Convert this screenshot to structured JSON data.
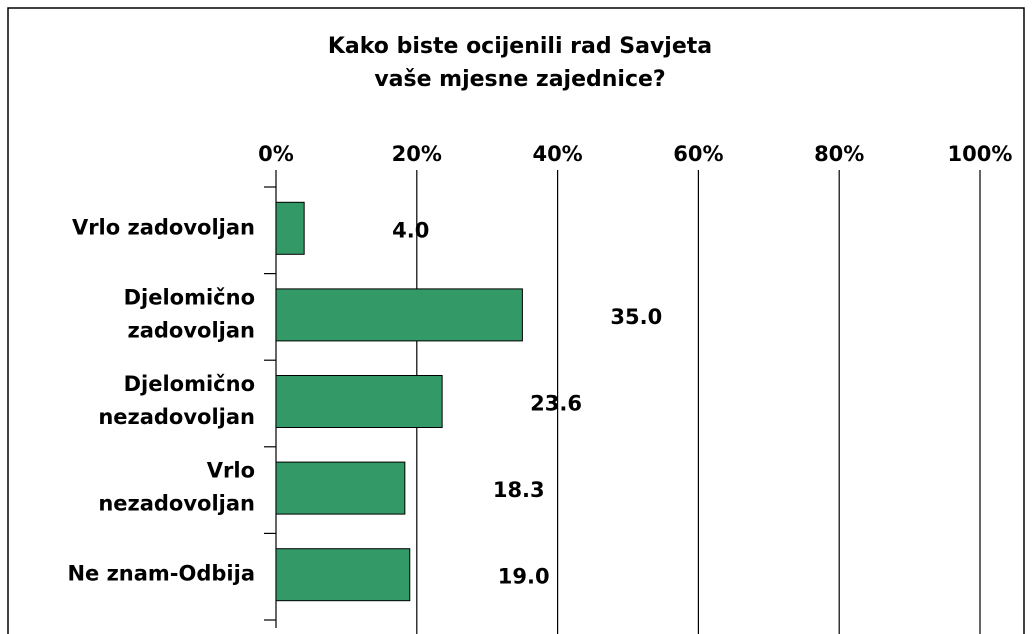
{
  "chart_data": {
    "type": "hbar",
    "title": "Kako biste ocijenili rad Savjeta\nvaše mjesne zajednice?",
    "categories": [
      "Vrlo zadovoljan",
      "Djelomično\nzadovoljan",
      "Djelomično\nnezadovoljan",
      "Vrlo\nnezadovoljan",
      "Ne znam-Odbija"
    ],
    "values": [
      4.0,
      35.0,
      23.6,
      18.3,
      19.0
    ],
    "value_labels": [
      "4.0",
      "35.0",
      "23.6",
      "18.3",
      "19.0"
    ],
    "color": "#339966",
    "xlim": [
      0,
      100
    ],
    "xticks": [
      {
        "value": 0,
        "label": "0%"
      },
      {
        "value": 20,
        "label": "20%"
      },
      {
        "value": 40,
        "label": "40%"
      },
      {
        "value": 60,
        "label": "60%"
      },
      {
        "value": 80,
        "label": "80%"
      },
      {
        "value": 100,
        "label": "100%"
      }
    ],
    "grid": true
  }
}
